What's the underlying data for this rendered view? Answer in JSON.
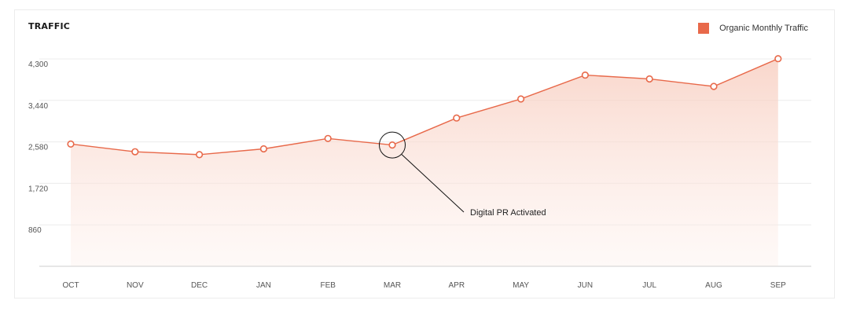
{
  "chart_data": {
    "type": "area",
    "title": "TRAFFIC",
    "xlabel": "",
    "ylabel": "",
    "categories": [
      "OCT",
      "NOV",
      "DEC",
      "JAN",
      "FEB",
      "MAR",
      "APR",
      "MAY",
      "JUN",
      "JUL",
      "AUG",
      "SEP"
    ],
    "y_ticks": [
      "4,300",
      "3,440",
      "2,580",
      "1,720",
      "860"
    ],
    "ylim": [
      0,
      4300
    ],
    "grid": true,
    "legend_position": "top-right",
    "series": [
      {
        "name": "Organic Monthly Traffic",
        "color": "#E8694A",
        "values": [
          2535,
          2375,
          2315,
          2435,
          2650,
          2515,
          3075,
          3470,
          3965,
          3885,
          3730,
          4305
        ]
      }
    ],
    "annotations": [
      {
        "text": "Digital PR Activated",
        "category": "MAR"
      }
    ]
  }
}
